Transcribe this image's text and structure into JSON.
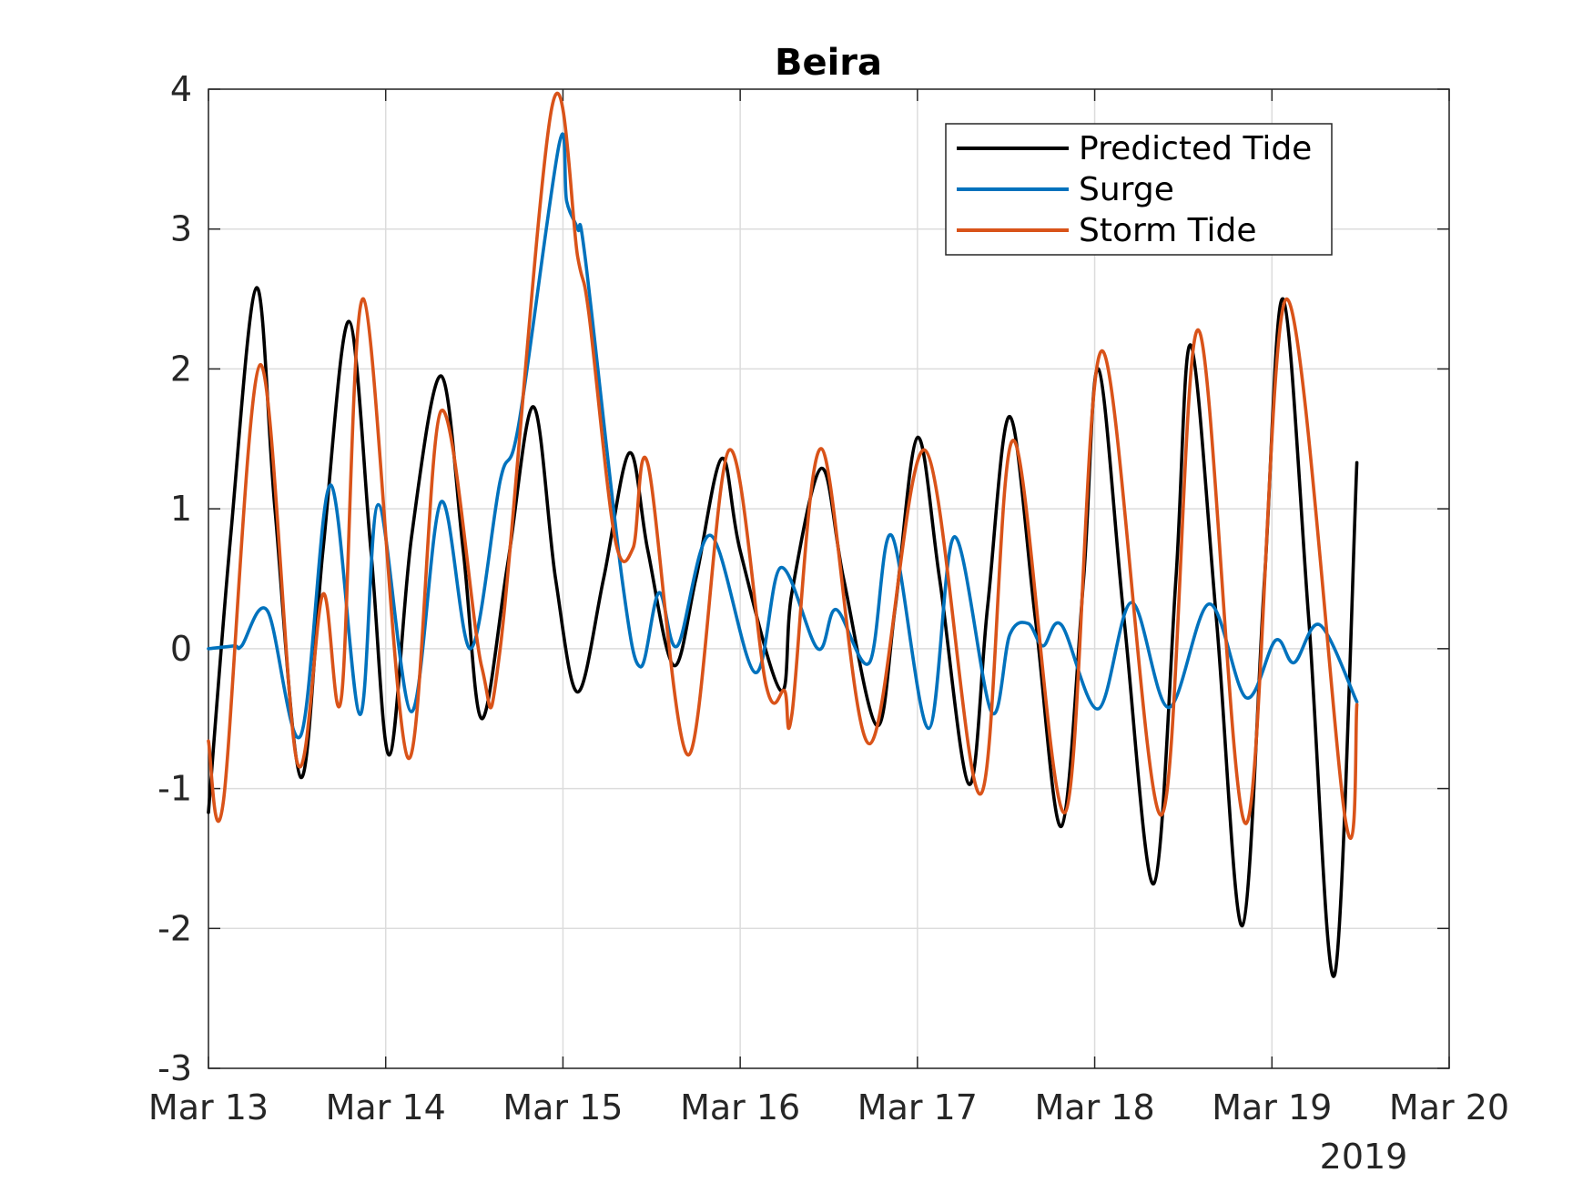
{
  "chart_data": {
    "type": "line",
    "title": "Beira",
    "xlabel": "",
    "ylabel": "",
    "x_tick_labels": [
      "Mar 13",
      "Mar 14",
      "Mar 15",
      "Mar 16",
      "Mar 17",
      "Mar 18",
      "Mar 19",
      "Mar 20"
    ],
    "x_year_label": "2019",
    "y_tick_labels": [
      "-3",
      "-2",
      "-1",
      "0",
      "1",
      "2",
      "3",
      "4"
    ],
    "x_range": [
      "2019-03-13",
      "2019-03-20"
    ],
    "ylim": [
      -3,
      4
    ],
    "grid": true,
    "legend_position": "top-right",
    "series": [
      {
        "name": "Predicted Tide",
        "color": "#000000",
        "points": [
          [
            "2019-03-13 00:00",
            -1.17
          ],
          [
            "2019-03-13 03:00",
            0.8
          ],
          [
            "2019-03-13 06:30",
            2.58
          ],
          [
            "2019-03-13 09:00",
            1.0
          ],
          [
            "2019-03-13 12:30",
            -0.92
          ],
          [
            "2019-03-13 15:30",
            0.7
          ],
          [
            "2019-03-13 19:00",
            2.34
          ],
          [
            "2019-03-13 22:00",
            0.7
          ],
          [
            "2019-03-14 00:30",
            -0.76
          ],
          [
            "2019-03-14 03:30",
            0.8
          ],
          [
            "2019-03-14 07:30",
            1.95
          ],
          [
            "2019-03-14 10:30",
            0.7
          ],
          [
            "2019-03-14 13:00",
            -0.5
          ],
          [
            "2019-03-14 16:30",
            0.6
          ],
          [
            "2019-03-14 20:00",
            1.73
          ],
          [
            "2019-03-14 23:00",
            0.5
          ],
          [
            "2019-03-15 02:00",
            -0.31
          ],
          [
            "2019-03-15 05:30",
            0.5
          ],
          [
            "2019-03-15 09:00",
            1.4
          ],
          [
            "2019-03-15 11:30",
            0.7
          ],
          [
            "2019-03-15 15:00",
            -0.12
          ],
          [
            "2019-03-15 18:00",
            0.5
          ],
          [
            "2019-03-15 21:30",
            1.36
          ],
          [
            "2019-03-16 00:00",
            0.7
          ],
          [
            "2019-03-16 05:30",
            -0.3
          ],
          [
            "2019-03-16 07:00",
            0.4
          ],
          [
            "2019-03-16 11:00",
            1.29
          ],
          [
            "2019-03-16 14:00",
            0.5
          ],
          [
            "2019-03-16 18:30",
            -0.55
          ],
          [
            "2019-03-16 21:00",
            0.3
          ],
          [
            "2019-03-17 00:00",
            1.51
          ],
          [
            "2019-03-17 03:00",
            0.5
          ],
          [
            "2019-03-17 07:00",
            -0.97
          ],
          [
            "2019-03-17 09:30",
            0.3
          ],
          [
            "2019-03-17 12:30",
            1.66
          ],
          [
            "2019-03-17 16:00",
            0.2
          ],
          [
            "2019-03-17 19:30",
            -1.27
          ],
          [
            "2019-03-17 22:30",
            0.5
          ],
          [
            "2019-03-18 00:30",
            2.0
          ],
          [
            "2019-03-18 04:00",
            0.2
          ],
          [
            "2019-03-18 08:00",
            -1.68
          ],
          [
            "2019-03-18 11:00",
            0.5
          ],
          [
            "2019-03-18 13:00",
            2.17
          ],
          [
            "2019-03-18 16:30",
            0.2
          ],
          [
            "2019-03-18 20:00",
            -1.98
          ],
          [
            "2019-03-18 23:00",
            0.5
          ],
          [
            "2019-03-19 01:30",
            2.5
          ],
          [
            "2019-03-19 05:00",
            0.2
          ],
          [
            "2019-03-19 08:30",
            -2.33
          ],
          [
            "2019-03-19 11:30",
            1.33
          ]
        ]
      },
      {
        "name": "Surge",
        "color": "#0072BD",
        "points": [
          [
            "2019-03-13 00:00",
            0.0
          ],
          [
            "2019-03-13 03:30",
            0.02
          ],
          [
            "2019-03-13 04:30",
            0.02
          ],
          [
            "2019-03-13 08:00",
            0.27
          ],
          [
            "2019-03-13 12:30",
            -0.62
          ],
          [
            "2019-03-13 16:30",
            1.17
          ],
          [
            "2019-03-13 20:30",
            -0.47
          ],
          [
            "2019-03-13 23:00",
            1.03
          ],
          [
            "2019-03-14 03:30",
            -0.45
          ],
          [
            "2019-03-14 07:30",
            1.05
          ],
          [
            "2019-03-14 11:30",
            0.0
          ],
          [
            "2019-03-14 15:30",
            1.2
          ],
          [
            "2019-03-14 18:00",
            1.6
          ],
          [
            "2019-03-14 23:30",
            3.61
          ],
          [
            "2019-03-15 00:30",
            3.2
          ],
          [
            "2019-03-15 02:00",
            3.0
          ],
          [
            "2019-03-15 03:00",
            2.8
          ],
          [
            "2019-03-15 08:00",
            0.5
          ],
          [
            "2019-03-15 10:30",
            -0.13
          ],
          [
            "2019-03-15 13:00",
            0.4
          ],
          [
            "2019-03-15 15:30",
            0.02
          ],
          [
            "2019-03-15 20:00",
            0.81
          ],
          [
            "2019-03-16 02:00",
            -0.17
          ],
          [
            "2019-03-16 05:30",
            0.58
          ],
          [
            "2019-03-16 10:30",
            0.0
          ],
          [
            "2019-03-16 13:00",
            0.28
          ],
          [
            "2019-03-16 17:30",
            -0.1
          ],
          [
            "2019-03-16 20:30",
            0.81
          ],
          [
            "2019-03-17 01:30",
            -0.57
          ],
          [
            "2019-03-17 05:00",
            0.8
          ],
          [
            "2019-03-17 10:00",
            -0.45
          ],
          [
            "2019-03-17 12:30",
            0.1
          ],
          [
            "2019-03-17 15:00",
            0.18
          ],
          [
            "2019-03-17 17:00",
            0.02
          ],
          [
            "2019-03-17 19:30",
            0.17
          ],
          [
            "2019-03-18 00:30",
            -0.43
          ],
          [
            "2019-03-18 05:00",
            0.33
          ],
          [
            "2019-03-18 10:00",
            -0.42
          ],
          [
            "2019-03-18 15:30",
            0.32
          ],
          [
            "2019-03-18 20:30",
            -0.35
          ],
          [
            "2019-03-19 00:30",
            0.06
          ],
          [
            "2019-03-19 03:00",
            -0.1
          ],
          [
            "2019-03-19 06:30",
            0.17
          ],
          [
            "2019-03-19 11:30",
            -0.38
          ]
        ]
      },
      {
        "name": "Storm Tide",
        "color": "#D95319",
        "points": [
          [
            "2019-03-13 00:00",
            -0.66
          ],
          [
            "2019-03-13 02:00",
            -1.1
          ],
          [
            "2019-03-13 07:00",
            2.03
          ],
          [
            "2019-03-13 12:00",
            -0.81
          ],
          [
            "2019-03-13 15:30",
            0.39
          ],
          [
            "2019-03-13 18:00",
            -0.35
          ],
          [
            "2019-03-13 21:00",
            2.5
          ],
          [
            "2019-03-14 03:00",
            -0.78
          ],
          [
            "2019-03-14 07:30",
            1.7
          ],
          [
            "2019-03-14 13:00",
            -0.13
          ],
          [
            "2019-03-14 15:30",
            0.0
          ],
          [
            "2019-03-14 22:30",
            3.87
          ],
          [
            "2019-03-15 02:00",
            2.8
          ],
          [
            "2019-03-15 03:30",
            2.4
          ],
          [
            "2019-03-15 07:00",
            0.8
          ],
          [
            "2019-03-15 09:30",
            0.72
          ],
          [
            "2019-03-15 11:30",
            1.32
          ],
          [
            "2019-03-15 17:00",
            -0.76
          ],
          [
            "2019-03-15 22:30",
            1.42
          ],
          [
            "2019-03-16 03:30",
            -0.26
          ],
          [
            "2019-03-16 06:00",
            -0.3
          ],
          [
            "2019-03-16 07:00",
            -0.47
          ],
          [
            "2019-03-16 11:00",
            1.43
          ],
          [
            "2019-03-16 17:30",
            -0.68
          ],
          [
            "2019-03-17 01:00",
            1.42
          ],
          [
            "2019-03-17 08:30",
            -1.04
          ],
          [
            "2019-03-17 13:00",
            1.49
          ],
          [
            "2019-03-17 20:00",
            -1.17
          ],
          [
            "2019-03-18 01:00",
            2.13
          ],
          [
            "2019-03-18 09:00",
            -1.19
          ],
          [
            "2019-03-18 14:00",
            2.28
          ],
          [
            "2019-03-18 20:30",
            -1.25
          ],
          [
            "2019-03-19 02:00",
            2.5
          ],
          [
            "2019-03-19 10:00",
            -1.24
          ],
          [
            "2019-03-19 11:30",
            -0.4
          ]
        ]
      }
    ]
  }
}
